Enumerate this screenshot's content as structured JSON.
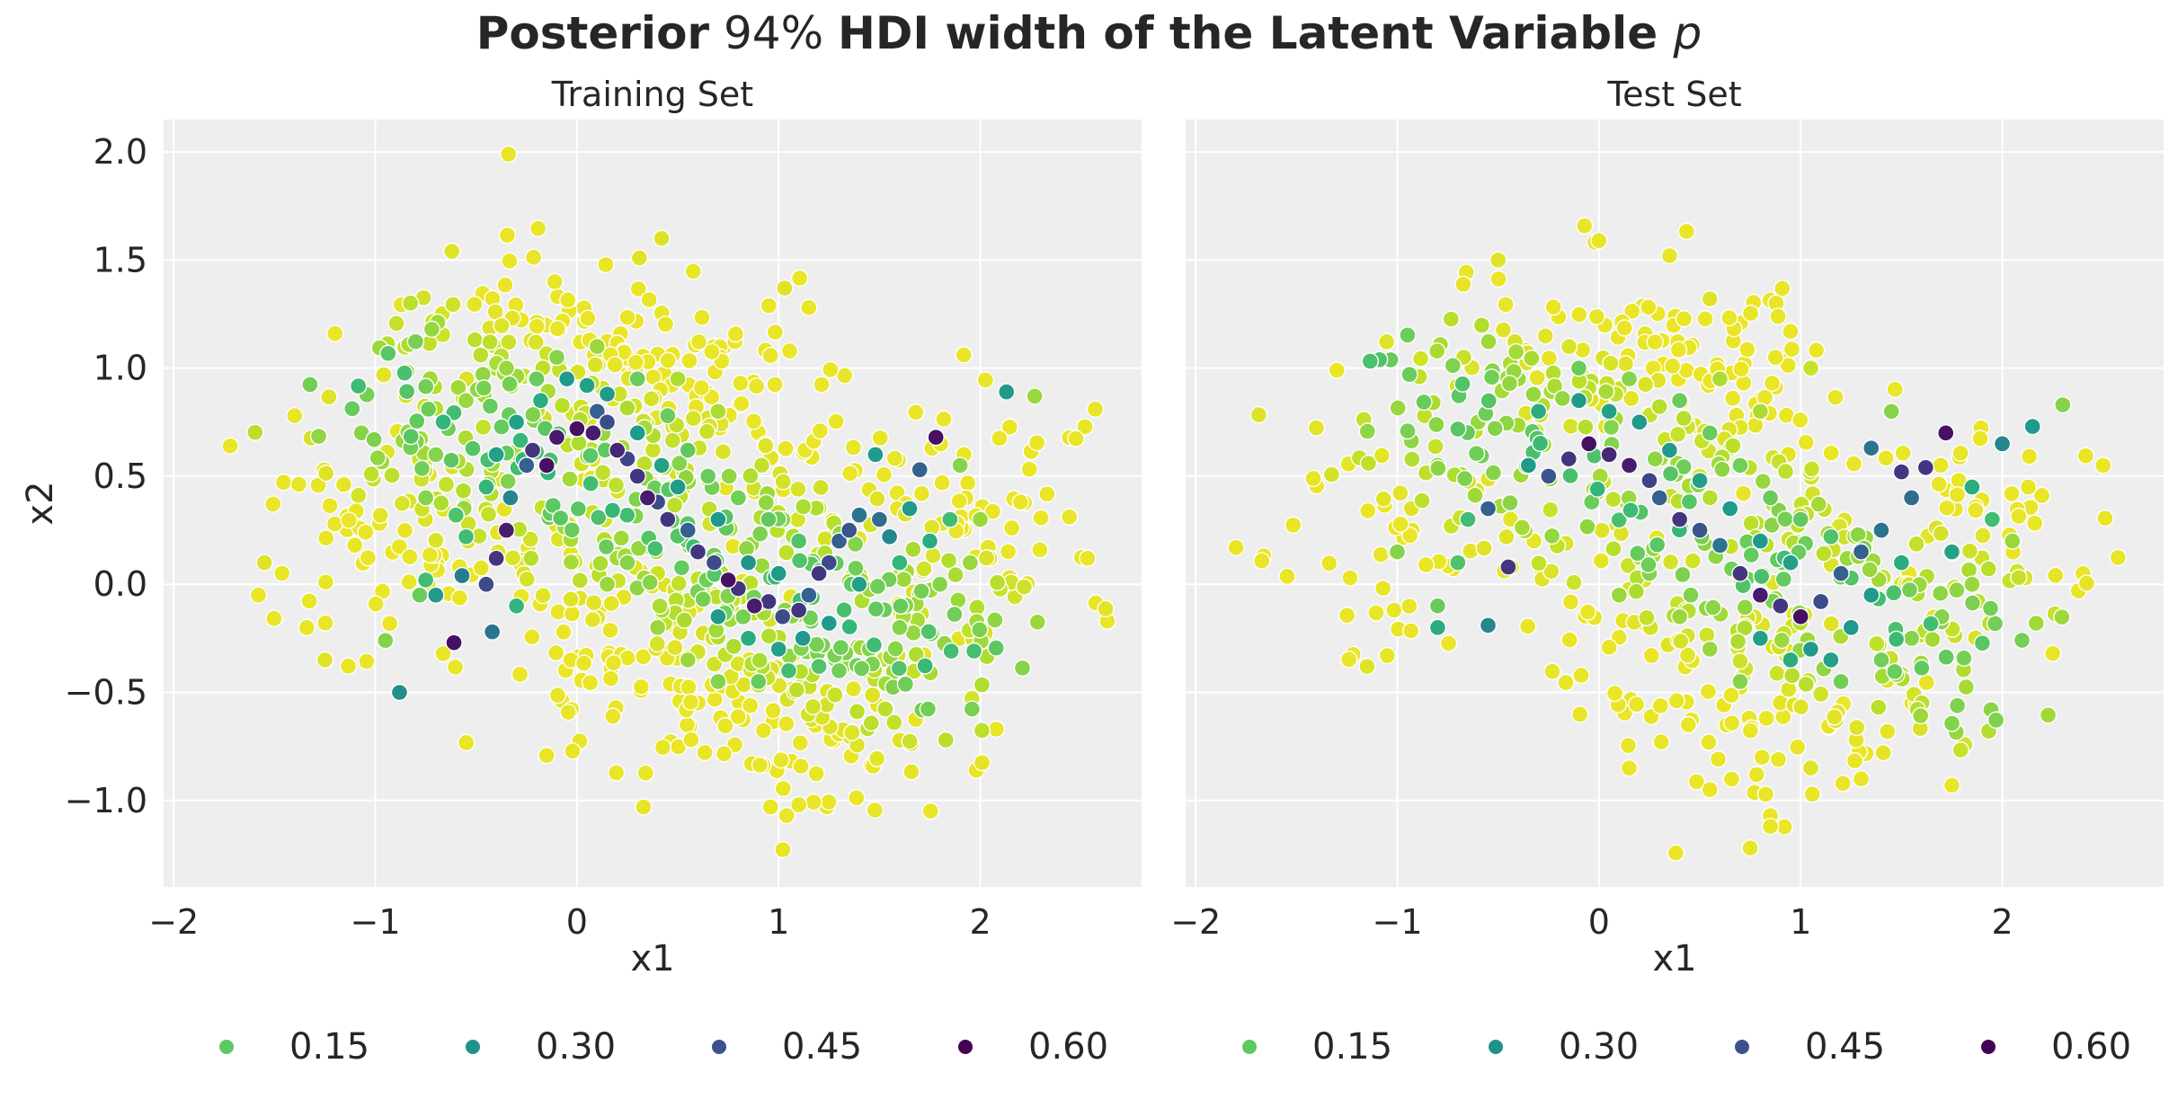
{
  "figure": {
    "title_part1": "Posterior",
    "title_part2": " 94% ",
    "title_part3": "HDI width of the Latent Variable ",
    "title_part4": "p"
  },
  "chart_data": [
    {
      "type": "scatter",
      "title": "Training Set",
      "xlabel": "x1",
      "ylabel": "x2",
      "xlim": [
        -2.05,
        2.8
      ],
      "ylim": [
        -1.4,
        2.15
      ],
      "xticks": [
        -2,
        -1,
        0,
        1,
        2
      ],
      "xtick_labels": [
        "−2",
        "−1",
        "0",
        "1",
        "2"
      ],
      "yticks": [
        -1.0,
        -0.5,
        0.0,
        0.5,
        1.0,
        1.5,
        2.0
      ],
      "ytick_labels": [
        "−1.0",
        "−0.5",
        "0.0",
        "0.5",
        "1.0",
        "1.5",
        "2.0"
      ],
      "grid": true,
      "legend": {
        "title": "",
        "placement": "bottom",
        "entries": [
          {
            "label": "0.15",
            "color": "#5ec962"
          },
          {
            "label": "0.30",
            "color": "#21918c"
          },
          {
            "label": "0.45",
            "color": "#3b528b"
          },
          {
            "label": "0.60",
            "color": "#440154"
          }
        ]
      },
      "color_scale": "viridis (0.0 to 0.65)",
      "note": "Two interleaving half-moons; ~1400 points coloured by HDI width. Individual points estimated; sampled representation.",
      "points": [
        [
          -1.72,
          0.64,
          0.02
        ],
        [
          -1.55,
          0.1,
          0.03
        ],
        [
          -1.4,
          0.78,
          0.02
        ],
        [
          -1.2,
          1.16,
          0.02
        ],
        [
          -1.34,
          -0.2,
          0.02
        ],
        [
          -1.25,
          -0.35,
          0.03
        ],
        [
          -0.62,
          1.54,
          0.03
        ],
        [
          -0.34,
          1.99,
          0.02
        ],
        [
          0.42,
          1.6,
          0.03
        ],
        [
          0.31,
          1.51,
          0.03
        ],
        [
          1.03,
          1.37,
          0.03
        ],
        [
          1.15,
          1.28,
          0.02
        ],
        [
          2.57,
          0.81,
          0.02
        ],
        [
          2.27,
          0.87,
          0.1
        ],
        [
          2.13,
          0.89,
          0.3
        ],
        [
          2.63,
          -0.17,
          0.02
        ],
        [
          1.98,
          -0.86,
          0.02
        ],
        [
          2.08,
          -0.67,
          0.02
        ],
        [
          0.33,
          -1.03,
          0.02
        ],
        [
          0.96,
          -1.03,
          0.02
        ],
        [
          1.04,
          -1.07,
          0.02
        ],
        [
          1.1,
          -1.02,
          0.02
        ],
        [
          -0.88,
          -0.5,
          0.33
        ],
        [
          -0.61,
          -0.27,
          0.62
        ],
        [
          -0.95,
          -0.26,
          0.12
        ],
        [
          -0.42,
          -0.22,
          0.4
        ],
        [
          -0.7,
          -0.05,
          0.3
        ],
        [
          -0.57,
          0.04,
          0.38
        ],
        [
          -0.75,
          0.02,
          0.2
        ],
        [
          -0.78,
          -0.05,
          0.15
        ],
        [
          -0.3,
          -0.1,
          0.22
        ],
        [
          -0.4,
          0.12,
          0.55
        ],
        [
          -0.45,
          0.0,
          0.5
        ],
        [
          -0.35,
          0.25,
          0.6
        ],
        [
          -0.33,
          0.4,
          0.35
        ],
        [
          -0.25,
          0.55,
          0.45
        ],
        [
          -0.22,
          0.62,
          0.55
        ],
        [
          -0.15,
          0.55,
          0.62
        ],
        [
          -0.1,
          0.68,
          0.6
        ],
        [
          0.0,
          0.72,
          0.62
        ],
        [
          0.08,
          0.7,
          0.6
        ],
        [
          0.1,
          0.8,
          0.45
        ],
        [
          0.15,
          0.75,
          0.5
        ],
        [
          0.2,
          0.62,
          0.58
        ],
        [
          0.25,
          0.58,
          0.52
        ],
        [
          0.3,
          0.5,
          0.55
        ],
        [
          0.35,
          0.4,
          0.6
        ],
        [
          0.4,
          0.38,
          0.5
        ],
        [
          0.45,
          0.3,
          0.55
        ],
        [
          0.55,
          0.25,
          0.45
        ],
        [
          0.6,
          0.15,
          0.55
        ],
        [
          0.68,
          0.1,
          0.5
        ],
        [
          0.75,
          0.02,
          0.62
        ],
        [
          0.8,
          -0.02,
          0.55
        ],
        [
          0.88,
          -0.1,
          0.6
        ],
        [
          0.95,
          -0.08,
          0.55
        ],
        [
          1.02,
          -0.15,
          0.5
        ],
        [
          1.1,
          -0.12,
          0.55
        ],
        [
          1.15,
          -0.05,
          0.45
        ],
        [
          1.2,
          0.05,
          0.55
        ],
        [
          1.25,
          0.1,
          0.5
        ],
        [
          1.3,
          0.2,
          0.45
        ],
        [
          1.35,
          0.25,
          0.48
        ],
        [
          1.4,
          0.32,
          0.4
        ],
        [
          1.5,
          0.3,
          0.42
        ],
        [
          1.55,
          0.22,
          0.35
        ],
        [
          1.7,
          0.53,
          0.45
        ],
        [
          1.78,
          0.68,
          0.62
        ],
        [
          1.48,
          0.6,
          0.3
        ],
        [
          1.65,
          0.35,
          0.3
        ],
        [
          -0.05,
          0.95,
          0.3
        ],
        [
          0.05,
          0.92,
          0.28
        ],
        [
          0.15,
          0.88,
          0.3
        ],
        [
          -0.18,
          0.85,
          0.25
        ],
        [
          -0.3,
          0.75,
          0.28
        ],
        [
          0.3,
          0.7,
          0.3
        ],
        [
          0.42,
          0.55,
          0.28
        ],
        [
          0.5,
          0.45,
          0.3
        ],
        [
          -0.4,
          0.6,
          0.28
        ],
        [
          -0.45,
          0.45,
          0.22
        ],
        [
          0.7,
          0.3,
          0.3
        ],
        [
          0.85,
          0.1,
          0.32
        ],
        [
          1.0,
          0.05,
          0.3
        ],
        [
          1.12,
          -0.25,
          0.3
        ],
        [
          1.0,
          -0.3,
          0.28
        ],
        [
          0.85,
          -0.25,
          0.25
        ],
        [
          0.7,
          -0.15,
          0.3
        ],
        [
          1.25,
          -0.18,
          0.3
        ],
        [
          1.4,
          0.0,
          0.28
        ],
        [
          1.6,
          0.1,
          0.22
        ],
        [
          1.75,
          0.2,
          0.25
        ],
        [
          1.85,
          0.3,
          0.2
        ],
        [
          1.05,
          -0.4,
          0.2
        ],
        [
          1.2,
          -0.38,
          0.18
        ],
        [
          0.9,
          -0.45,
          0.15
        ],
        [
          -0.6,
          0.32,
          0.18
        ],
        [
          -0.55,
          0.22,
          0.2
        ],
        [
          -0.2,
          0.95,
          0.15
        ],
        [
          0.3,
          0.95,
          0.15
        ],
        [
          0.45,
          0.78,
          0.15
        ],
        [
          0.55,
          0.62,
          0.16
        ],
        [
          0.65,
          0.5,
          0.15
        ],
        [
          0.8,
          0.4,
          0.14
        ],
        [
          0.95,
          0.3,
          0.16
        ],
        [
          1.1,
          0.2,
          0.18
        ],
        [
          1.3,
          -0.4,
          0.14
        ],
        [
          1.45,
          -0.3,
          0.12
        ],
        [
          1.6,
          -0.2,
          0.12
        ],
        [
          1.8,
          0.0,
          0.12
        ],
        [
          1.95,
          0.1,
          0.1
        ],
        [
          2.0,
          0.3,
          0.1
        ],
        [
          1.9,
          0.55,
          0.12
        ],
        [
          0.7,
          -0.45,
          0.12
        ],
        [
          0.55,
          -0.35,
          0.1
        ],
        [
          0.4,
          -0.2,
          0.1
        ],
        [
          -0.1,
          1.05,
          0.12
        ],
        [
          0.1,
          1.1,
          0.1
        ],
        [
          -0.35,
          1.0,
          0.1
        ],
        [
          -0.55,
          0.85,
          0.1
        ],
        [
          -0.7,
          0.6,
          0.12
        ],
        [
          -0.75,
          0.4,
          0.12
        ],
        [
          0.5,
          0.95,
          0.08
        ],
        [
          0.7,
          0.8,
          0.08
        ],
        [
          0.25,
          0.1,
          0.12
        ],
        [
          0.15,
          0.0,
          0.1
        ]
      ],
      "background_density": 900
    },
    {
      "type": "scatter",
      "title": "Test Set",
      "xlabel": "x1",
      "ylabel": "",
      "xlim": [
        -2.05,
        2.8
      ],
      "ylim": [
        -1.4,
        2.15
      ],
      "xticks": [
        -2,
        -1,
        0,
        1,
        2
      ],
      "xtick_labels": [
        "−2",
        "−1",
        "0",
        "1",
        "2"
      ],
      "grid": true,
      "legend": {
        "title": "",
        "placement": "bottom",
        "entries": [
          {
            "label": "0.15",
            "color": "#5ec962"
          },
          {
            "label": "0.30",
            "color": "#21918c"
          },
          {
            "label": "0.45",
            "color": "#3b528b"
          },
          {
            "label": "0.60",
            "color": "#440154"
          }
        ]
      },
      "color_scale": "viridis (0.0 to 0.65)",
      "note": "Two interleaving half-moons; ~1000 points coloured by HDI width. Individual points estimated; sampled representation.",
      "points": [
        [
          -1.8,
          0.17,
          0.02
        ],
        [
          -1.3,
          0.99,
          0.02
        ],
        [
          -0.5,
          1.5,
          0.03
        ],
        [
          0.0,
          1.59,
          0.02
        ],
        [
          0.35,
          1.52,
          0.02
        ],
        [
          0.55,
          1.32,
          0.03
        ],
        [
          0.95,
          1.17,
          0.02
        ],
        [
          1.05,
          1.0,
          0.05
        ],
        [
          2.3,
          0.83,
          0.12
        ],
        [
          2.5,
          0.55,
          0.02
        ],
        [
          2.4,
          0.05,
          0.02
        ],
        [
          2.25,
          -0.32,
          0.02
        ],
        [
          1.75,
          -0.93,
          0.02
        ],
        [
          1.3,
          -0.9,
          0.02
        ],
        [
          1.05,
          -0.85,
          0.03
        ],
        [
          0.75,
          -1.22,
          0.02
        ],
        [
          0.85,
          -1.07,
          0.02
        ],
        [
          0.85,
          -1.12,
          0.02
        ],
        [
          0.55,
          -0.95,
          0.02
        ],
        [
          0.15,
          -0.85,
          0.02
        ],
        [
          -1.15,
          -0.38,
          0.03
        ],
        [
          -1.05,
          -0.33,
          0.02
        ],
        [
          -0.55,
          -0.19,
          0.35
        ],
        [
          -0.8,
          -0.2,
          0.25
        ],
        [
          -0.45,
          0.08,
          0.55
        ],
        [
          -0.55,
          0.35,
          0.45
        ],
        [
          -0.35,
          0.55,
          0.3
        ],
        [
          -0.25,
          0.5,
          0.48
        ],
        [
          -0.15,
          0.58,
          0.55
        ],
        [
          -0.05,
          0.65,
          0.62
        ],
        [
          0.05,
          0.6,
          0.58
        ],
        [
          0.15,
          0.55,
          0.6
        ],
        [
          0.25,
          0.48,
          0.52
        ],
        [
          0.3,
          0.4,
          0.45
        ],
        [
          0.4,
          0.3,
          0.55
        ],
        [
          0.5,
          0.25,
          0.48
        ],
        [
          0.6,
          0.18,
          0.4
        ],
        [
          0.7,
          0.05,
          0.55
        ],
        [
          0.8,
          -0.05,
          0.6
        ],
        [
          0.9,
          -0.1,
          0.55
        ],
        [
          1.0,
          -0.15,
          0.62
        ],
        [
          1.1,
          -0.08,
          0.5
        ],
        [
          1.2,
          0.05,
          0.45
        ],
        [
          1.3,
          0.15,
          0.45
        ],
        [
          1.4,
          0.25,
          0.4
        ],
        [
          1.55,
          0.4,
          0.42
        ],
        [
          1.62,
          0.54,
          0.55
        ],
        [
          1.72,
          0.7,
          0.62
        ],
        [
          1.5,
          0.52,
          0.55
        ],
        [
          1.35,
          0.63,
          0.4
        ],
        [
          2.15,
          0.73,
          0.3
        ],
        [
          2.0,
          0.65,
          0.35
        ],
        [
          1.85,
          0.45,
          0.25
        ],
        [
          1.95,
          0.3,
          0.2
        ],
        [
          1.75,
          0.15,
          0.28
        ],
        [
          -0.1,
          0.85,
          0.3
        ],
        [
          0.05,
          0.8,
          0.28
        ],
        [
          0.2,
          0.75,
          0.3
        ],
        [
          -0.3,
          0.8,
          0.25
        ],
        [
          0.35,
          0.62,
          0.3
        ],
        [
          0.5,
          0.48,
          0.28
        ],
        [
          0.65,
          0.35,
          0.3
        ],
        [
          0.8,
          0.2,
          0.3
        ],
        [
          0.95,
          0.1,
          0.28
        ],
        [
          1.05,
          -0.3,
          0.3
        ],
        [
          1.15,
          -0.35,
          0.28
        ],
        [
          1.25,
          -0.2,
          0.3
        ],
        [
          0.95,
          -0.35,
          0.25
        ],
        [
          0.8,
          -0.25,
          0.28
        ],
        [
          1.35,
          -0.05,
          0.3
        ],
        [
          1.5,
          0.1,
          0.25
        ],
        [
          -0.65,
          0.3,
          0.2
        ],
        [
          -0.7,
          0.1,
          0.18
        ],
        [
          -0.8,
          -0.1,
          0.15
        ],
        [
          -1.0,
          0.15,
          0.12
        ],
        [
          -0.1,
          1.0,
          0.15
        ],
        [
          0.15,
          0.95,
          0.12
        ],
        [
          0.4,
          0.85,
          0.15
        ],
        [
          0.55,
          0.7,
          0.15
        ],
        [
          0.7,
          0.55,
          0.14
        ],
        [
          0.85,
          0.4,
          0.15
        ],
        [
          1.0,
          0.3,
          0.16
        ],
        [
          1.15,
          0.22,
          0.18
        ],
        [
          1.2,
          -0.45,
          0.14
        ],
        [
          1.4,
          -0.35,
          0.14
        ],
        [
          1.55,
          -0.25,
          0.12
        ],
        [
          1.7,
          -0.15,
          0.12
        ],
        [
          1.85,
          0.0,
          0.1
        ],
        [
          2.05,
          0.2,
          0.1
        ],
        [
          0.7,
          -0.45,
          0.12
        ],
        [
          0.55,
          -0.3,
          0.1
        ],
        [
          0.4,
          -0.15,
          0.1
        ],
        [
          -0.4,
          0.95,
          0.1
        ],
        [
          -0.6,
          0.75,
          0.1
        ],
        [
          -0.8,
          0.55,
          0.1
        ],
        [
          0.6,
          0.95,
          0.08
        ],
        [
          0.8,
          0.8,
          0.08
        ],
        [
          0.25,
          0.05,
          0.12
        ],
        [
          0.1,
          -0.05,
          0.1
        ],
        [
          1.45,
          0.8,
          0.12
        ]
      ],
      "background_density": 650
    }
  ]
}
